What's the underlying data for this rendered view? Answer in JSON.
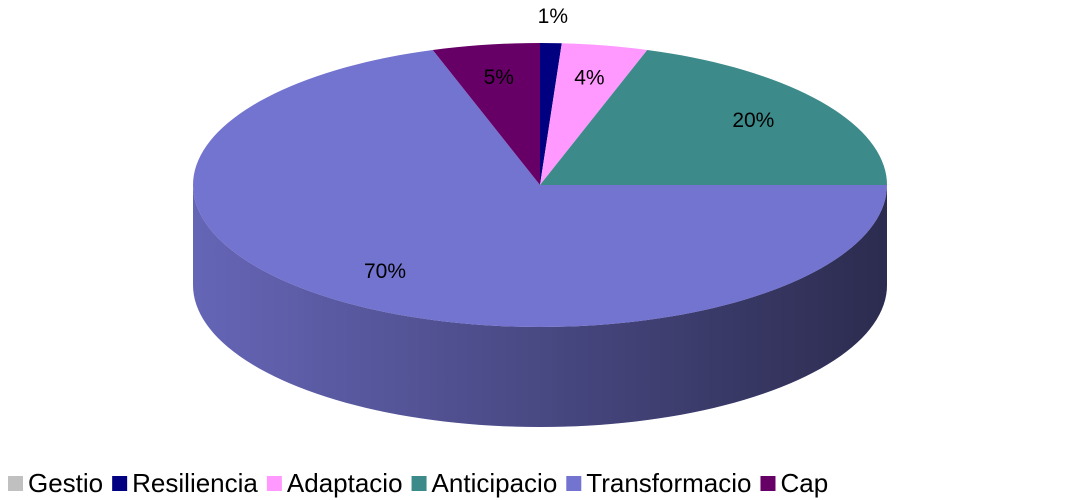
{
  "chart_data": {
    "type": "pie3d",
    "categories": [
      "Gestio",
      "Resiliencia",
      "Adaptacio",
      "Anticipacio",
      "Transformacio",
      "Cap"
    ],
    "values": [
      0,
      1,
      4,
      20,
      70,
      5
    ],
    "value_labels": [
      null,
      "1%",
      "4%",
      "20%",
      "70%",
      "5%"
    ],
    "colors": [
      "#c0c0c0",
      "#000080",
      "#ff99ff",
      "#3d8a8a",
      "#7373d0",
      "#660066"
    ],
    "legend": "bottom"
  }
}
